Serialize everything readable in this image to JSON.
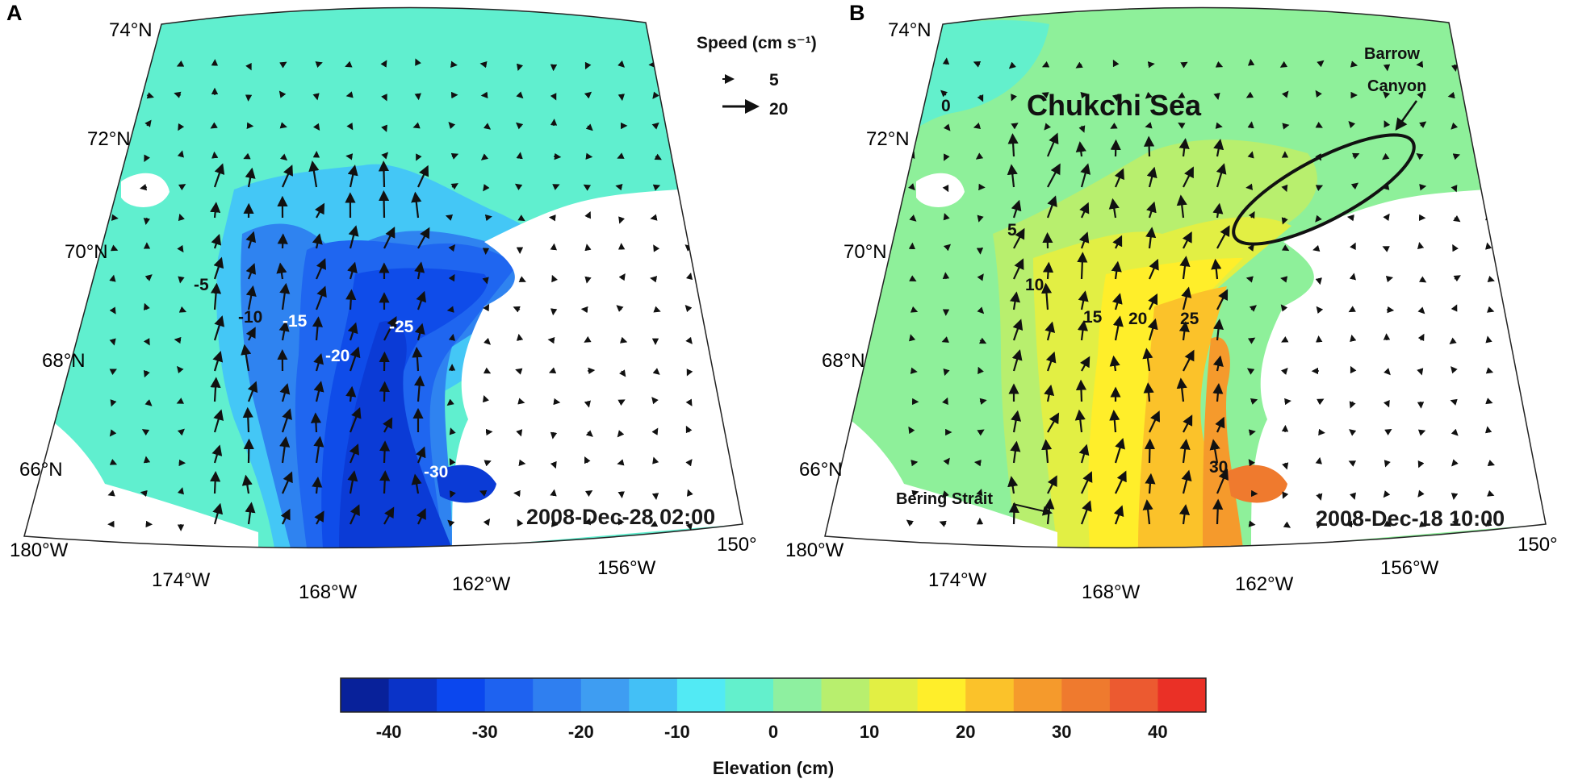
{
  "panels": [
    {
      "id": "A",
      "letter": "A",
      "timestamp": "2008-Dec-28 02:00",
      "lat_labels": [
        "74°N",
        "72°N",
        "70°N",
        "68°N",
        "66°N"
      ],
      "lon_labels": [
        "180°W",
        "174°W",
        "168°W",
        "162°W",
        "156°W",
        "150°"
      ],
      "contour_labels": [
        "-5",
        "-10",
        "-15",
        "-20",
        "-25",
        "-30"
      ]
    },
    {
      "id": "B",
      "letter": "B",
      "timestamp": "2008-Dec-18 10:00",
      "lat_labels": [
        "74°N",
        "72°N",
        "70°N",
        "68°N",
        "66°N"
      ],
      "lon_labels": [
        "180°W",
        "174°W",
        "168°W",
        "162°W",
        "156°W",
        "150°"
      ],
      "contour_labels": [
        "0",
        "5",
        "10",
        "15",
        "20",
        "25",
        "30"
      ],
      "region_label": "Chukchi Sea",
      "annotations": {
        "bering": "Bering Strait",
        "barrow_1": "Barrow",
        "barrow_2": "Canyon"
      }
    }
  ],
  "speed_legend": {
    "title": "Speed (cm s⁻¹)",
    "small": "5",
    "large": "20"
  },
  "colorbar": {
    "label": "Elevation (cm)",
    "ticks": [
      "-40",
      "-30",
      "-20",
      "-10",
      "0",
      "10",
      "20",
      "30",
      "40"
    ],
    "colors": [
      "#08219a",
      "#0a33c8",
      "#0b47ee",
      "#1e62f0",
      "#2f7ff0",
      "#3e9df2",
      "#43c0f6",
      "#52eaf4",
      "#63f0cc",
      "#8ef0a0",
      "#b8ef6e",
      "#e2ef44",
      "#ffee2a",
      "#fbc22a",
      "#f59a2c",
      "#ef7a2e",
      "#ec5a30",
      "#ea3026"
    ]
  }
}
